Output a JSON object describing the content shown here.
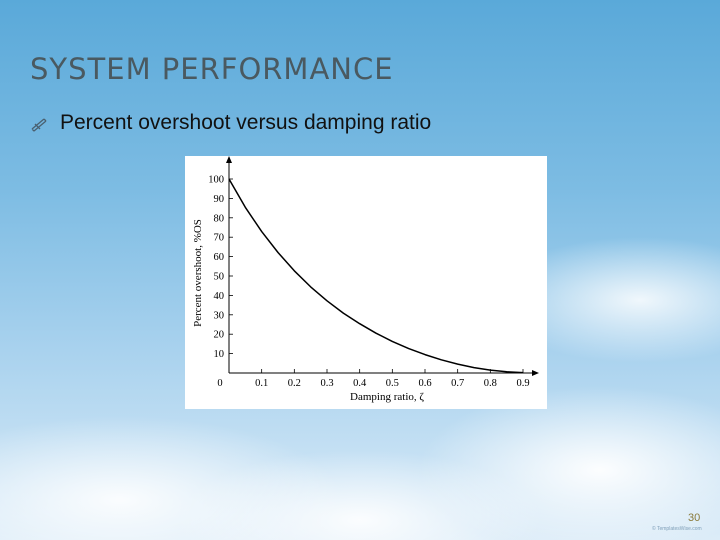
{
  "slide": {
    "title": "SYSTEM PERFORMANCE",
    "bullet_text": "Percent overshoot versus damping ratio",
    "bullet_icon": "decorative-bullet-icon",
    "page_number": "30",
    "credit": "© TemplatesWise.com"
  },
  "colors": {
    "title": "#4a5960",
    "page_number": "#8a7a3a",
    "curve": "#000000"
  },
  "chart_data": {
    "type": "line",
    "xlabel": "Damping ratio, ζ",
    "ylabel": "Percent overshoot, %OS",
    "xlim": [
      0,
      0.9
    ],
    "ylim": [
      0,
      100
    ],
    "x_ticks": [
      "0",
      "0.1",
      "0.2",
      "0.3",
      "0.4",
      "0.5",
      "0.6",
      "0.7",
      "0.8",
      "0.9"
    ],
    "y_ticks": [
      "10",
      "20",
      "30",
      "40",
      "50",
      "60",
      "70",
      "80",
      "90",
      "100"
    ],
    "grid": false,
    "series": [
      {
        "x": [
          0,
          0.05,
          0.1,
          0.15,
          0.2,
          0.25,
          0.3,
          0.35,
          0.4,
          0.45,
          0.5,
          0.55,
          0.6,
          0.65,
          0.7,
          0.75,
          0.8,
          0.85,
          0.9
        ],
        "values": [
          100,
          85.4,
          72.9,
          62.1,
          52.7,
          44.4,
          37.2,
          30.9,
          25.4,
          20.5,
          16.3,
          12.6,
          9.5,
          6.8,
          4.6,
          2.8,
          1.5,
          0.6,
          0.2
        ]
      }
    ]
  }
}
